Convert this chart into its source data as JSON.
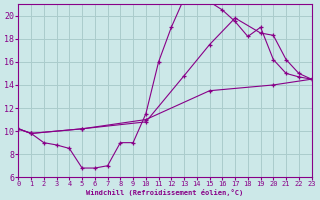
{
  "background_color": "#cce8e8",
  "grid_color": "#aacccc",
  "line_color": "#880088",
  "marker": "+",
  "xlim": [
    0,
    23
  ],
  "ylim": [
    6,
    21
  ],
  "xticks": [
    0,
    1,
    2,
    3,
    4,
    5,
    6,
    7,
    8,
    9,
    10,
    11,
    12,
    13,
    14,
    15,
    16,
    17,
    18,
    19,
    20,
    21,
    22,
    23
  ],
  "yticks": [
    6,
    8,
    10,
    12,
    14,
    16,
    18,
    20
  ],
  "xlabel": "Windchill (Refroidissement éolien,°C)",
  "curve1_x": [
    0,
    1,
    2,
    3,
    4,
    5,
    6,
    7,
    8,
    9,
    10,
    11,
    12,
    13,
    14,
    15,
    16,
    17,
    18,
    19,
    20,
    21,
    22,
    23
  ],
  "curve1_y": [
    10.2,
    9.8,
    9.0,
    8.8,
    8.5,
    6.8,
    6.8,
    7.0,
    9.0,
    9.0,
    11.5,
    16.0,
    19.0,
    21.5,
    21.8,
    21.2,
    20.5,
    19.5,
    18.2,
    19.0,
    16.2,
    15.0,
    14.7,
    14.5
  ],
  "curve2_x": [
    0,
    1,
    5,
    10,
    13,
    15,
    17,
    19,
    20,
    21,
    22,
    23
  ],
  "curve2_y": [
    10.2,
    9.8,
    10.2,
    10.8,
    14.8,
    17.5,
    19.8,
    18.5,
    18.3,
    16.2,
    15.0,
    14.5
  ],
  "curve3_x": [
    0,
    1,
    5,
    10,
    15,
    20,
    23
  ],
  "curve3_y": [
    10.2,
    9.8,
    10.2,
    11.0,
    13.5,
    14.0,
    14.5
  ]
}
